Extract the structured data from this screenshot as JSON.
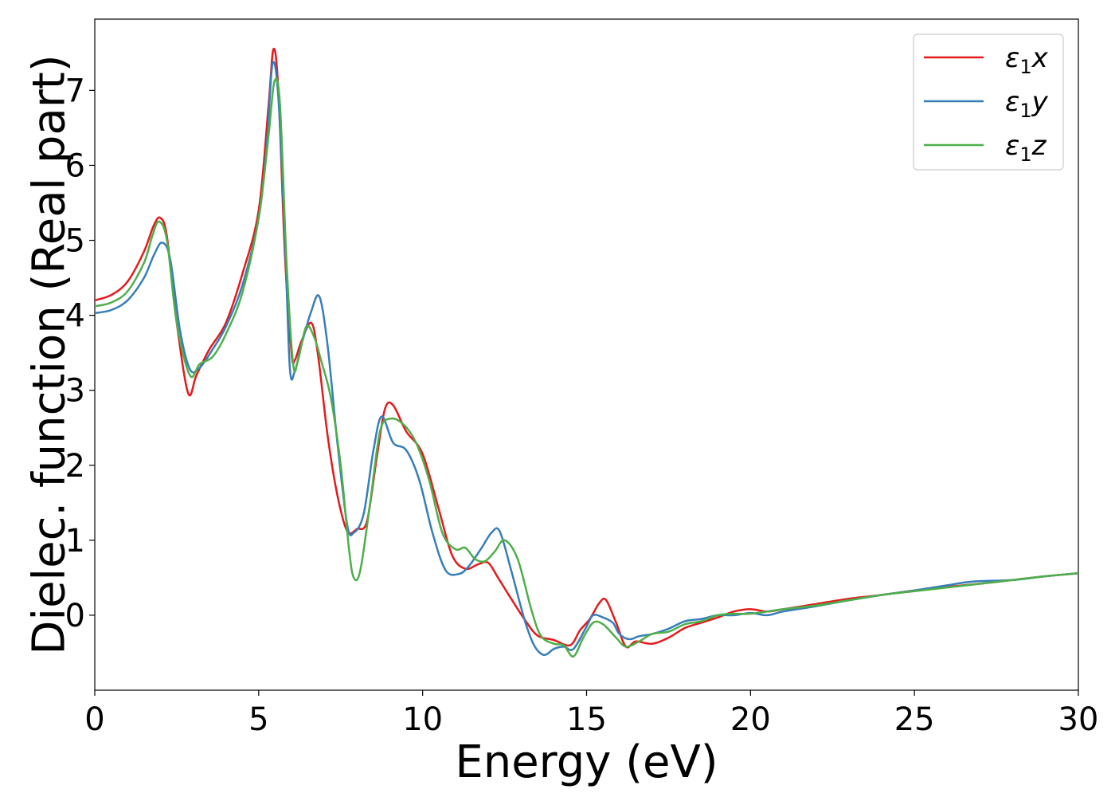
{
  "chart_data": {
    "type": "line",
    "title": "",
    "xlabel": "Energy (eV)",
    "ylabel": "Dielec. function (Real part)",
    "xlim": [
      0,
      30
    ],
    "ylim": [
      -1.0,
      7.95
    ],
    "xticks": [
      0,
      5,
      10,
      15,
      20,
      25,
      30
    ],
    "yticks": [
      0,
      1,
      2,
      3,
      4,
      5,
      6,
      7
    ],
    "grid": false,
    "legend_position": "top-right",
    "series": [
      {
        "label_base": "ε",
        "label_sub": "1",
        "label_var": "x",
        "color": "#e41a1c",
        "x": [
          0,
          0.5,
          1.0,
          1.5,
          1.8,
          2.0,
          2.2,
          2.5,
          2.85,
          3.1,
          3.5,
          4.0,
          4.5,
          5.0,
          5.3,
          5.45,
          5.6,
          5.8,
          6.0,
          6.1,
          6.3,
          6.6,
          6.8,
          7.1,
          7.4,
          7.7,
          8.0,
          8.3,
          8.6,
          8.85,
          9.1,
          9.5,
          10.0,
          10.5,
          10.9,
          11.3,
          11.7,
          12.0,
          12.3,
          12.7,
          13.1,
          13.5,
          14.0,
          14.5,
          14.8,
          15.1,
          15.4,
          15.6,
          15.9,
          16.2,
          16.5,
          17.0,
          17.5,
          18.0,
          18.5,
          19.0,
          19.5,
          20.0,
          20.5,
          21.0,
          22.0,
          23.0,
          24.0,
          25.0,
          26.0,
          27.0,
          28.0,
          29.0,
          30.0
        ],
        "values": [
          4.2,
          4.27,
          4.45,
          4.85,
          5.2,
          5.3,
          5.05,
          3.9,
          2.96,
          3.2,
          3.55,
          3.9,
          4.55,
          5.4,
          6.8,
          7.55,
          7.0,
          4.8,
          3.5,
          3.4,
          3.65,
          3.9,
          3.5,
          2.4,
          1.6,
          1.12,
          1.15,
          1.25,
          2.1,
          2.75,
          2.8,
          2.45,
          2.15,
          1.4,
          0.8,
          0.62,
          0.68,
          0.7,
          0.5,
          0.22,
          -0.05,
          -0.27,
          -0.33,
          -0.4,
          -0.2,
          -0.05,
          0.17,
          0.2,
          -0.1,
          -0.42,
          -0.35,
          -0.38,
          -0.3,
          -0.17,
          -0.1,
          -0.03,
          0.05,
          0.08,
          0.05,
          0.08,
          0.15,
          0.22,
          0.27,
          0.33,
          0.38,
          0.42,
          0.47,
          0.52,
          0.56
        ]
      },
      {
        "label_base": "ε",
        "label_sub": "1",
        "label_var": "y",
        "color": "#377eb8",
        "x": [
          0,
          0.5,
          1.0,
          1.5,
          1.8,
          2.05,
          2.3,
          2.6,
          2.9,
          3.2,
          3.6,
          4.0,
          4.5,
          5.0,
          5.25,
          5.42,
          5.6,
          5.8,
          5.95,
          6.1,
          6.3,
          6.6,
          6.85,
          7.1,
          7.4,
          7.7,
          7.9,
          8.2,
          8.5,
          8.75,
          9.1,
          9.5,
          9.9,
          10.3,
          10.7,
          11.1,
          11.4,
          11.8,
          12.1,
          12.35,
          12.7,
          13.1,
          13.4,
          13.7,
          14.0,
          14.3,
          14.6,
          15.0,
          15.2,
          15.5,
          15.8,
          16.0,
          16.3,
          16.6,
          17.0,
          17.5,
          18.0,
          18.5,
          19.0,
          19.5,
          20.0,
          20.5,
          21.0,
          22.0,
          23.0,
          24.0,
          25.0,
          26.0,
          26.8,
          28.0,
          29.0,
          30.0
        ],
        "values": [
          4.03,
          4.07,
          4.2,
          4.5,
          4.8,
          4.97,
          4.75,
          3.8,
          3.28,
          3.3,
          3.55,
          3.85,
          4.4,
          5.3,
          6.3,
          7.35,
          6.9,
          5.0,
          3.3,
          3.25,
          3.6,
          4.05,
          4.25,
          3.6,
          2.3,
          1.2,
          1.1,
          1.35,
          2.2,
          2.65,
          2.3,
          2.2,
          1.8,
          1.1,
          0.6,
          0.55,
          0.65,
          0.9,
          1.1,
          1.12,
          0.6,
          -0.05,
          -0.4,
          -0.53,
          -0.45,
          -0.42,
          -0.45,
          -0.15,
          0.0,
          -0.03,
          -0.1,
          -0.25,
          -0.32,
          -0.28,
          -0.25,
          -0.18,
          -0.08,
          -0.05,
          0.0,
          0.0,
          0.03,
          0.0,
          0.05,
          0.12,
          0.2,
          0.27,
          0.33,
          0.4,
          0.45,
          0.47,
          0.52,
          0.56
        ]
      },
      {
        "label_base": "ε",
        "label_sub": "1",
        "label_var": "z",
        "color": "#4daf4a",
        "x": [
          0,
          0.5,
          1.0,
          1.5,
          1.75,
          1.95,
          2.2,
          2.5,
          2.9,
          3.2,
          3.6,
          4.0,
          4.5,
          5.0,
          5.3,
          5.48,
          5.65,
          5.85,
          6.05,
          6.2,
          6.45,
          6.7,
          6.9,
          7.2,
          7.5,
          7.75,
          7.9,
          8.1,
          8.4,
          8.7,
          9.0,
          9.4,
          9.8,
          10.2,
          10.6,
          11.0,
          11.3,
          11.6,
          11.9,
          12.2,
          12.5,
          12.9,
          13.3,
          13.6,
          14.0,
          14.3,
          14.6,
          14.9,
          15.2,
          15.5,
          15.9,
          16.2,
          16.6,
          17.0,
          17.5,
          18.0,
          18.5,
          19.0,
          19.5,
          20.0,
          21.0,
          22.0,
          23.0,
          24.0,
          25.0,
          26.0,
          27.0,
          28.0,
          29.0,
          30.0
        ],
        "values": [
          4.12,
          4.17,
          4.32,
          4.7,
          5.05,
          5.25,
          5.0,
          3.9,
          3.2,
          3.35,
          3.45,
          3.75,
          4.3,
          5.3,
          6.4,
          7.12,
          6.8,
          4.7,
          3.35,
          3.4,
          3.85,
          3.7,
          3.4,
          2.9,
          2.0,
          0.9,
          0.5,
          0.6,
          1.5,
          2.45,
          2.62,
          2.55,
          2.3,
          1.8,
          1.1,
          0.88,
          0.9,
          0.75,
          0.72,
          0.85,
          1.0,
          0.75,
          0.1,
          -0.27,
          -0.38,
          -0.4,
          -0.55,
          -0.3,
          -0.1,
          -0.12,
          -0.3,
          -0.42,
          -0.35,
          -0.25,
          -0.22,
          -0.12,
          -0.08,
          0.0,
          0.02,
          0.02,
          0.08,
          0.13,
          0.2,
          0.27,
          0.32,
          0.37,
          0.42,
          0.47,
          0.52,
          0.56
        ]
      }
    ]
  }
}
